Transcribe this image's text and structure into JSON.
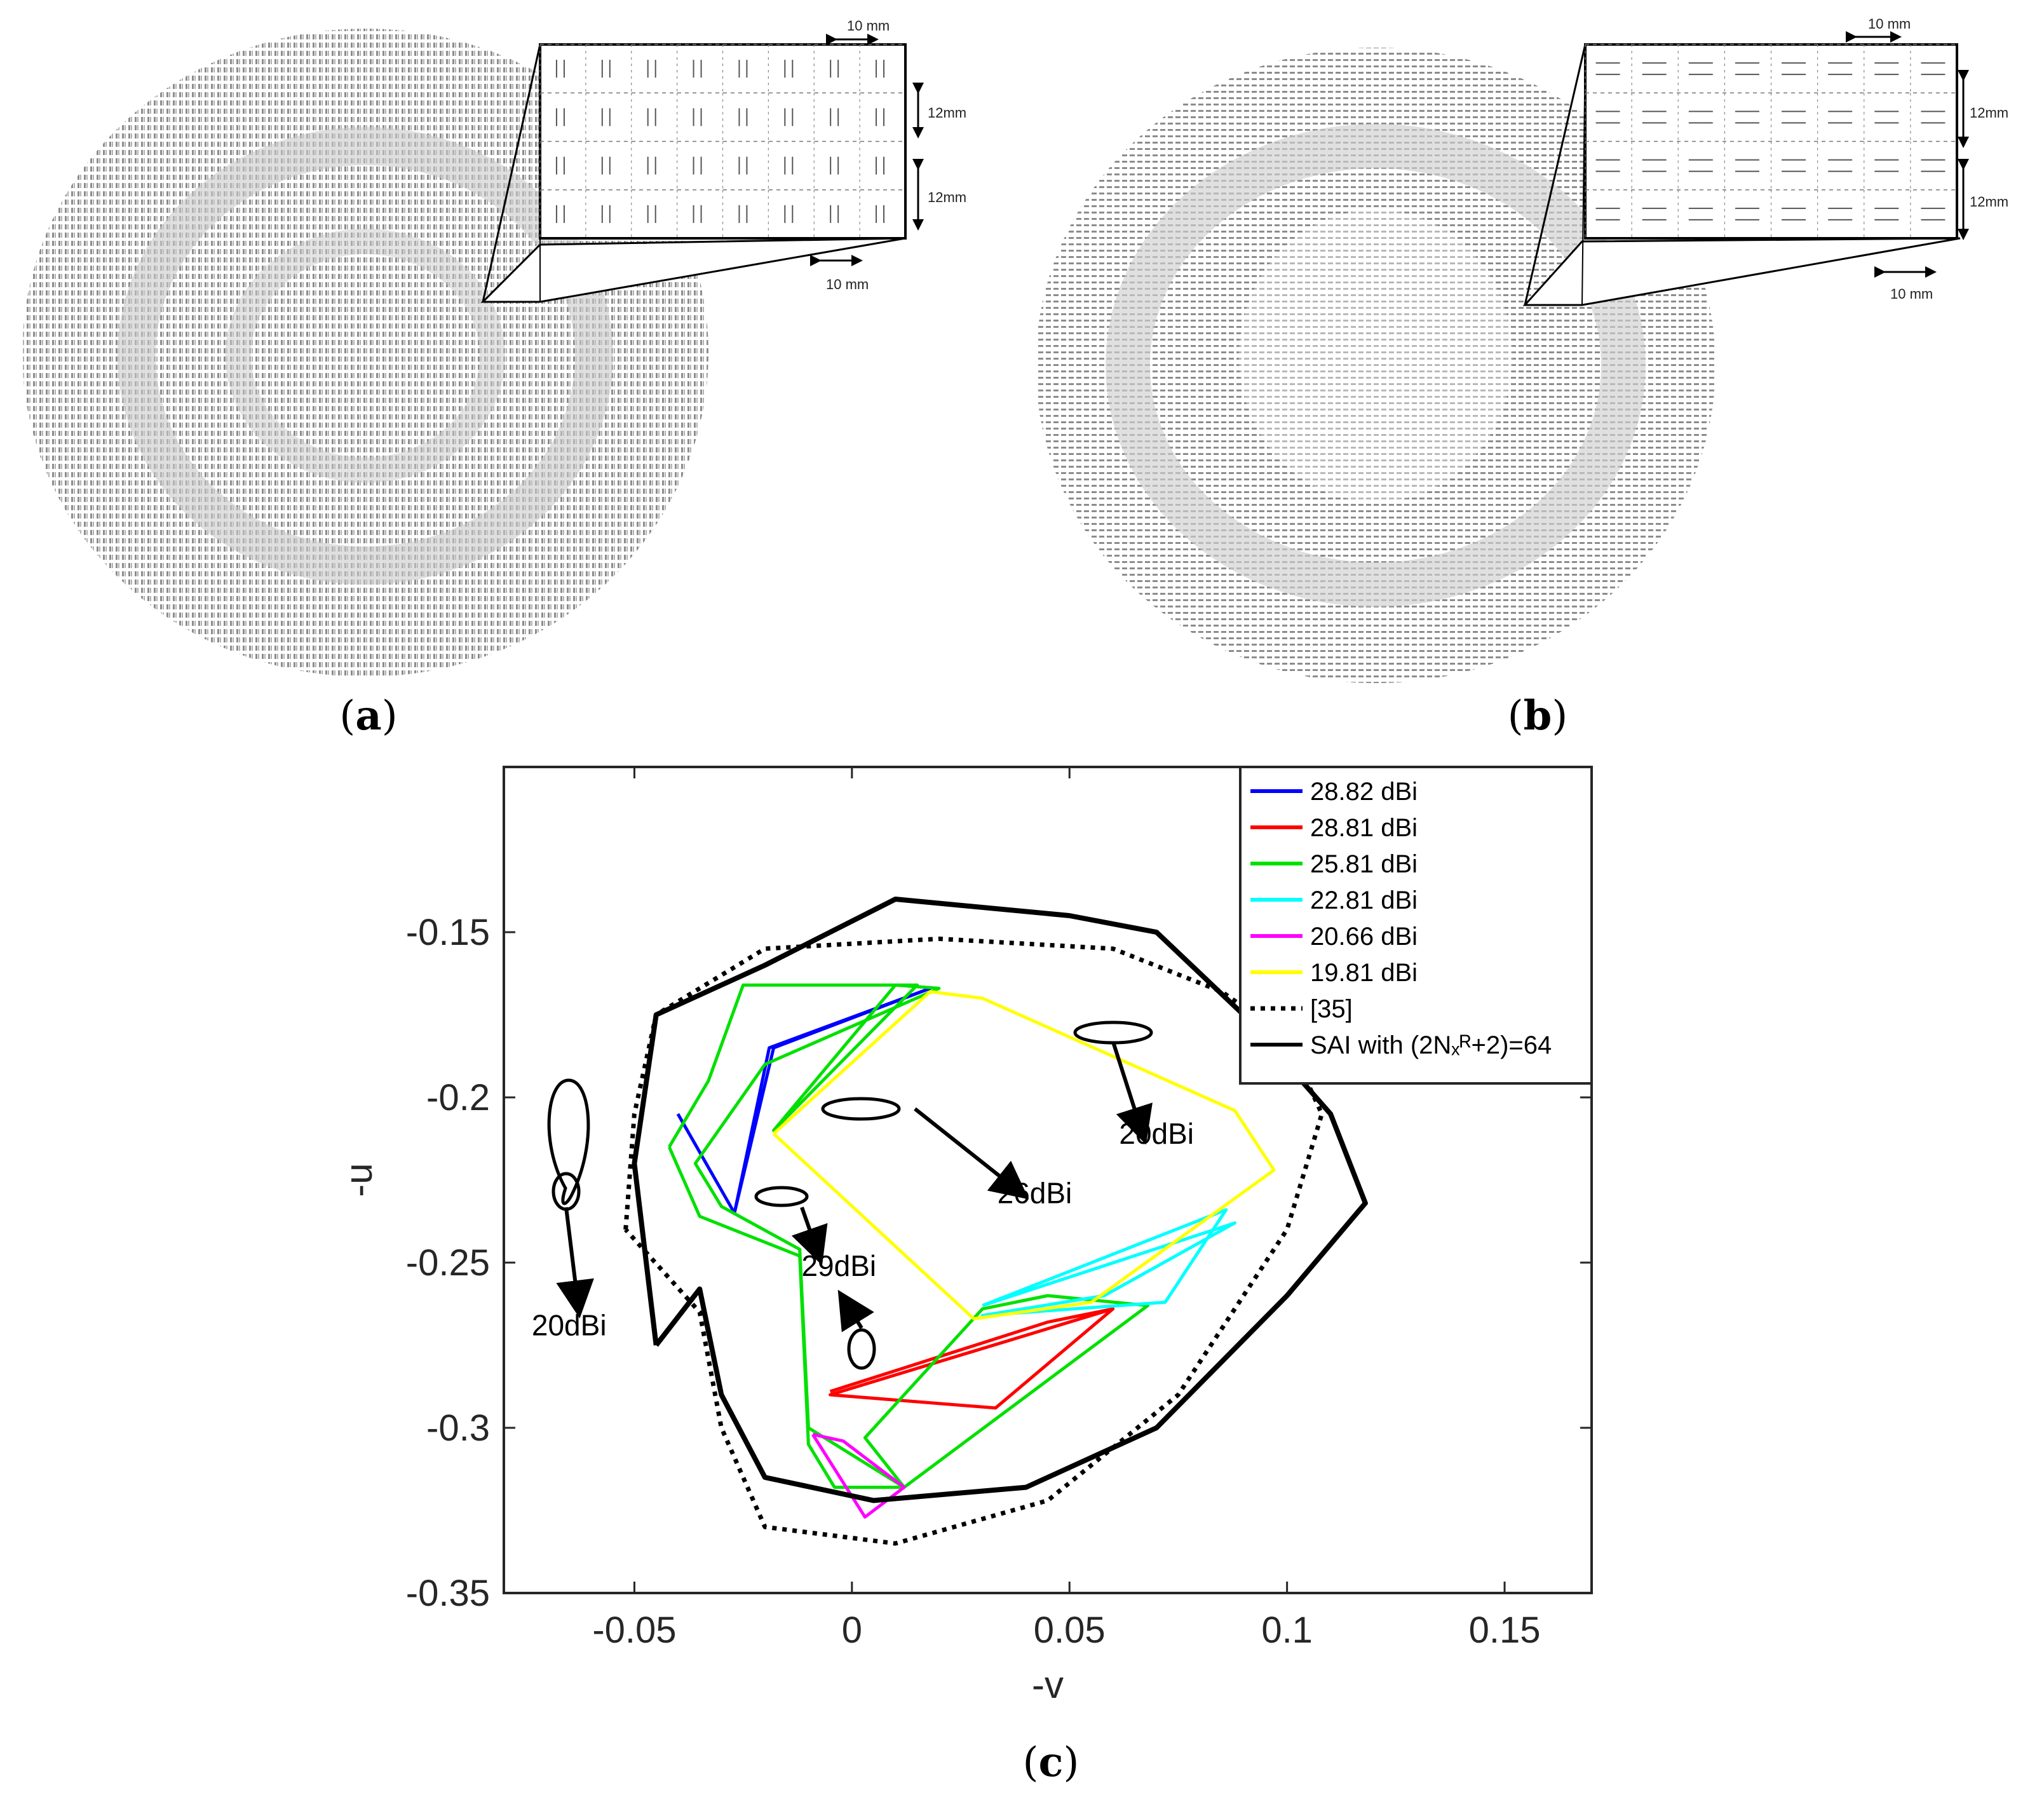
{
  "panels": {
    "a": {
      "caption_open": "(",
      "caption_letter": "a",
      "caption_close": ")",
      "inset_labels": {
        "top_pitch": "10 mm",
        "row1": "12mm",
        "row2": "12mm",
        "bottom_pitch": "10 mm"
      }
    },
    "b": {
      "caption_open": "(",
      "caption_letter": "b",
      "caption_close": ")",
      "inset_labels": {
        "top_pitch": "10 mm",
        "row1": "12mm",
        "row2": "12mm",
        "bottom_pitch": "10 mm"
      }
    },
    "c": {
      "caption_open": "(",
      "caption_letter": "c",
      "caption_close": ")"
    }
  },
  "colors": {
    "s1": "#0000ff",
    "s2": "#ff0000",
    "s3": "#00e000",
    "s4": "#00ffff",
    "s5": "#ff00ff",
    "s6": "#ffff00",
    "ref": "#000000",
    "sai": "#000000",
    "array_dot": "#9a9a9a"
  },
  "chart_data": {
    "type": "line",
    "xlabel": "-v",
    "ylabel": "-u",
    "xlim": [
      -0.08,
      0.17
    ],
    "ylim": [
      -0.35,
      -0.1
    ],
    "xticks": [
      -0.05,
      0,
      0.05,
      0.1,
      0.15
    ],
    "yticks": [
      -0.15,
      -0.2,
      -0.25,
      -0.3,
      -0.35
    ],
    "xtick_labels": [
      "-0.05",
      "0",
      "0.05",
      "0.1",
      "0.15"
    ],
    "ytick_labels": [
      "-0.15",
      "-0.2",
      "-0.25",
      "-0.3",
      "-0.35"
    ],
    "legend_position": "top-right",
    "series": [
      {
        "name": "28.82 dBi",
        "color": "#0000ff",
        "style": "solid",
        "points": [
          [
            -0.04,
            -0.205
          ],
          [
            -0.027,
            -0.235
          ],
          [
            -0.019,
            -0.185
          ],
          [
            0.018,
            -0.167
          ],
          [
            -0.018,
            -0.185
          ],
          [
            -0.027,
            -0.235
          ],
          [
            -0.04,
            -0.205
          ]
        ]
      },
      {
        "name": "28.81 dBi",
        "color": "#ff0000",
        "style": "solid",
        "points": [
          [
            -0.005,
            -0.29
          ],
          [
            0.06,
            -0.264
          ],
          [
            0.033,
            -0.294
          ],
          [
            -0.005,
            -0.29
          ],
          [
            0.06,
            -0.264
          ],
          [
            0.045,
            -0.268
          ],
          [
            -0.005,
            -0.289
          ]
        ]
      },
      {
        "name": "25.81 dBi",
        "color": "#00e000",
        "style": "solid",
        "points": [
          [
            -0.042,
            -0.215
          ],
          [
            -0.033,
            -0.195
          ],
          [
            -0.025,
            -0.166
          ],
          [
            0.015,
            -0.166
          ],
          [
            -0.018,
            -0.21
          ],
          [
            0.01,
            -0.166
          ],
          [
            0.02,
            -0.167
          ],
          [
            -0.02,
            -0.19
          ],
          [
            -0.036,
            -0.22
          ],
          [
            -0.03,
            -0.233
          ],
          [
            -0.012,
            -0.246
          ],
          [
            -0.01,
            -0.3
          ],
          [
            0.012,
            -0.318
          ],
          [
            0.068,
            -0.263
          ],
          [
            0.045,
            -0.26
          ],
          [
            0.03,
            -0.264
          ],
          [
            0.003,
            -0.303
          ],
          [
            0.012,
            -0.318
          ],
          [
            -0.004,
            -0.318
          ],
          [
            -0.01,
            -0.305
          ],
          [
            -0.012,
            -0.248
          ],
          [
            -0.035,
            -0.236
          ],
          [
            -0.042,
            -0.215
          ]
        ]
      },
      {
        "name": "22.81 dBi",
        "color": "#00ffff",
        "style": "solid",
        "points": [
          [
            0.03,
            -0.263
          ],
          [
            0.086,
            -0.234
          ],
          [
            0.072,
            -0.262
          ],
          [
            0.03,
            -0.266
          ],
          [
            0.058,
            -0.26
          ],
          [
            0.088,
            -0.238
          ],
          [
            0.03,
            -0.263
          ]
        ]
      },
      {
        "name": "20.66 dBi",
        "color": "#ff00ff",
        "style": "solid",
        "points": [
          [
            -0.009,
            -0.302
          ],
          [
            0.003,
            -0.327
          ],
          [
            0.012,
            -0.318
          ],
          [
            -0.002,
            -0.304
          ],
          [
            -0.009,
            -0.302
          ]
        ]
      },
      {
        "name": "19.81 dBi",
        "color": "#ffff00",
        "style": "solid",
        "points": [
          [
            -0.018,
            -0.211
          ],
          [
            0.018,
            -0.168
          ],
          [
            0.03,
            -0.17
          ],
          [
            0.088,
            -0.204
          ],
          [
            0.097,
            -0.222
          ],
          [
            0.055,
            -0.262
          ],
          [
            0.028,
            -0.267
          ],
          [
            -0.018,
            -0.211
          ]
        ]
      },
      {
        "name": "[35]",
        "color": "#000000",
        "style": "dotted",
        "points": [
          [
            -0.052,
            -0.24
          ],
          [
            -0.05,
            -0.205
          ],
          [
            -0.045,
            -0.175
          ],
          [
            -0.02,
            -0.155
          ],
          [
            0.02,
            -0.152
          ],
          [
            0.06,
            -0.155
          ],
          [
            0.085,
            -0.168
          ],
          [
            0.1,
            -0.182
          ],
          [
            0.108,
            -0.205
          ],
          [
            0.1,
            -0.24
          ],
          [
            0.075,
            -0.29
          ],
          [
            0.045,
            -0.322
          ],
          [
            0.01,
            -0.335
          ],
          [
            -0.02,
            -0.33
          ],
          [
            -0.03,
            -0.3
          ],
          [
            -0.035,
            -0.265
          ],
          [
            -0.052,
            -0.24
          ]
        ]
      },
      {
        "name": "SAI with (2Nₓᴿ+2)=64",
        "color": "#000000",
        "style": "solid",
        "points": [
          [
            -0.045,
            -0.275
          ],
          [
            -0.05,
            -0.22
          ],
          [
            -0.045,
            -0.175
          ],
          [
            -0.02,
            -0.16
          ],
          [
            0.01,
            -0.14
          ],
          [
            0.05,
            -0.145
          ],
          [
            0.07,
            -0.15
          ],
          [
            0.09,
            -0.175
          ],
          [
            0.11,
            -0.205
          ],
          [
            0.118,
            -0.232
          ],
          [
            0.1,
            -0.26
          ],
          [
            0.07,
            -0.3
          ],
          [
            0.04,
            -0.318
          ],
          [
            0.005,
            -0.322
          ],
          [
            -0.02,
            -0.315
          ],
          [
            -0.03,
            -0.29
          ],
          [
            -0.035,
            -0.258
          ],
          [
            -0.045,
            -0.275
          ]
        ]
      }
    ],
    "annotations": [
      {
        "text": "20dBi",
        "x": -0.065,
        "y": -0.272
      },
      {
        "text": "29dBi",
        "x": -0.003,
        "y": -0.254
      },
      {
        "text": "26dBi",
        "x": 0.042,
        "y": -0.232
      },
      {
        "text": "20dBi",
        "x": 0.07,
        "y": -0.214
      }
    ]
  }
}
